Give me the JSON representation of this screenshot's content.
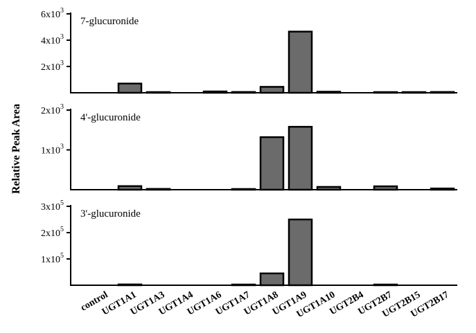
{
  "chart_data": {
    "type": "bar",
    "ylabel": "Relative Peak Area",
    "categories": [
      "control",
      "UGT1A1",
      "UGT1A3",
      "UGT1A4",
      "UGT1A6",
      "UGT1A7",
      "UGT1A8",
      "UGT1A9",
      "UGT1A10",
      "UGT2B4",
      "UGT2B7",
      "UGT2B15",
      "UGT2B17"
    ],
    "panels": [
      {
        "title": "7-glucuronide",
        "ylim": [
          0,
          6000
        ],
        "ticks": [
          {
            "value": 2000,
            "mantissa": "2x10",
            "exp": "3"
          },
          {
            "value": 4000,
            "mantissa": "4x10",
            "exp": "3"
          },
          {
            "value": 6000,
            "mantissa": "6x10",
            "exp": "3"
          }
        ],
        "values": [
          0,
          700,
          20,
          0,
          100,
          60,
          450,
          4650,
          80,
          0,
          40,
          50,
          60
        ]
      },
      {
        "title": "4'-glucuronide",
        "ylim": [
          0,
          2000
        ],
        "ticks": [
          {
            "value": 1000,
            "mantissa": "1x10",
            "exp": "3"
          },
          {
            "value": 2000,
            "mantissa": "2x10",
            "exp": "3"
          }
        ],
        "values": [
          0,
          90,
          20,
          0,
          0,
          10,
          1320,
          1580,
          70,
          0,
          85,
          0,
          30
        ]
      },
      {
        "title": "3'-glucuronide",
        "ylim": [
          0,
          300000
        ],
        "ticks": [
          {
            "value": 100000,
            "mantissa": "1x10",
            "exp": "5"
          },
          {
            "value": 200000,
            "mantissa": "2x10",
            "exp": "5"
          },
          {
            "value": 300000,
            "mantissa": "3x10",
            "exp": "5"
          }
        ],
        "values": [
          0,
          3000,
          0,
          0,
          0,
          1500,
          45000,
          250000,
          0,
          0,
          1500,
          0,
          0
        ]
      }
    ]
  }
}
